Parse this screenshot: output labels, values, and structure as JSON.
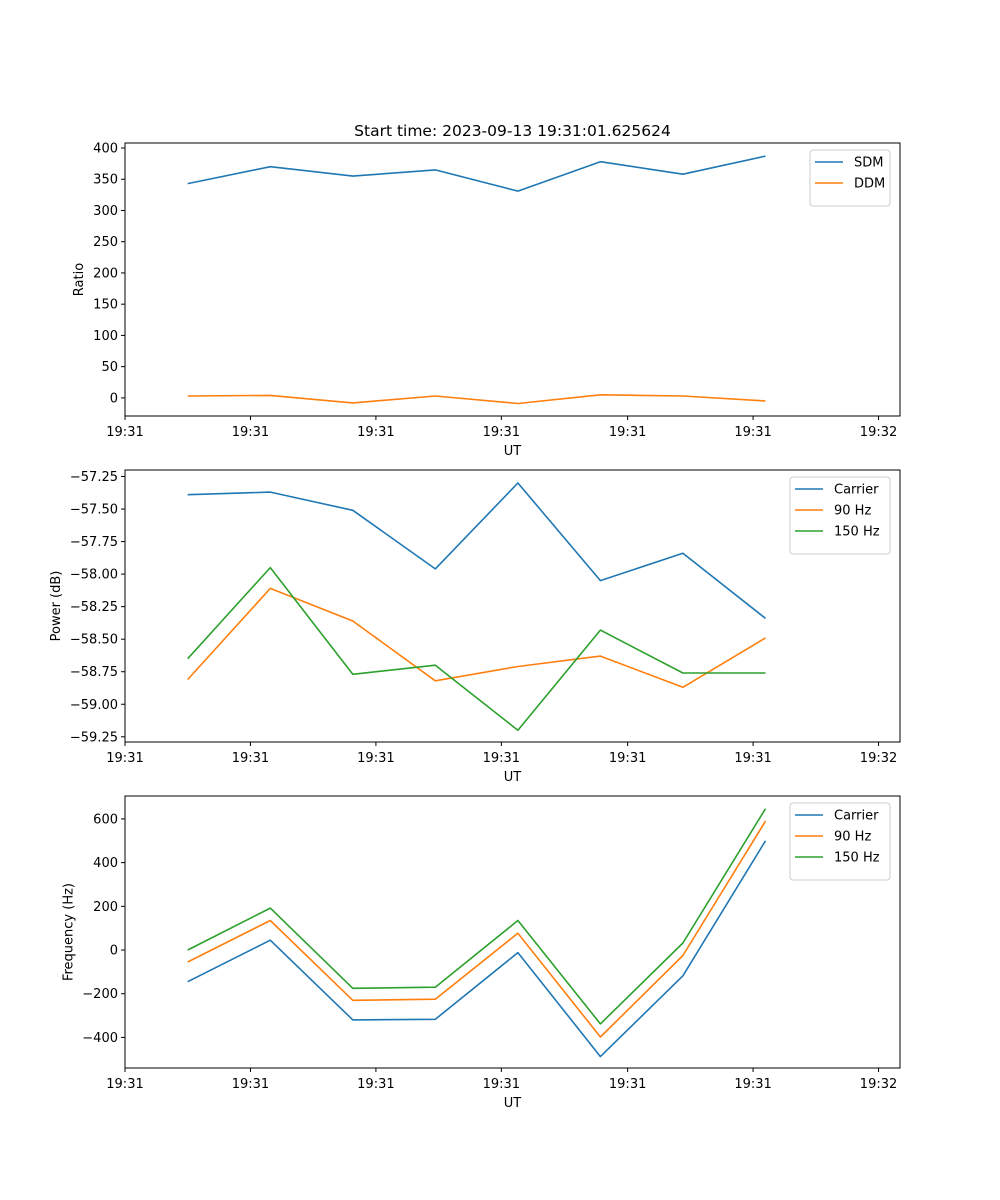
{
  "title": "Start time: 2023-09-13 19:31:01.625624",
  "colors": {
    "blue": "#1f77b4",
    "orange": "#ff7f0e",
    "green": "#2ca02c"
  },
  "chart_data": [
    {
      "type": "line",
      "title": "Start time: 2023-09-13 19:31:01.625624",
      "xlabel": "UT",
      "ylabel": "Ratio",
      "x": [
        1,
        2,
        3,
        4,
        5,
        6,
        7,
        8
      ],
      "xlim": [
        0.24,
        9.63
      ],
      "xticks": [
        0.24,
        1.76,
        3.28,
        4.8,
        6.33,
        7.85,
        9.37
      ],
      "xtick_labels": [
        "19:31",
        "19:31",
        "19:31",
        "19:31",
        "19:31",
        "19:31",
        "19:32"
      ],
      "ylim": [
        -29,
        408
      ],
      "yticks": [
        0,
        50,
        100,
        150,
        200,
        250,
        300,
        350,
        400
      ],
      "ytick_labels": [
        "0",
        "50",
        "100",
        "150",
        "200",
        "250",
        "300",
        "350",
        "400"
      ],
      "legend": "top-right",
      "series": [
        {
          "name": "SDM",
          "color": "#1f77b4",
          "values": [
            343,
            370,
            355,
            365,
            331,
            378,
            358,
            387
          ]
        },
        {
          "name": "DDM",
          "color": "#ff7f0e",
          "values": [
            3,
            4,
            -8,
            3,
            -9,
            5,
            3,
            -5
          ]
        }
      ]
    },
    {
      "type": "line",
      "xlabel": "UT",
      "ylabel": "Power (dB)",
      "x": [
        1,
        2,
        3,
        4,
        5,
        6,
        7,
        8
      ],
      "xlim": [
        0.24,
        9.63
      ],
      "xticks": [
        0.24,
        1.76,
        3.28,
        4.8,
        6.33,
        7.85,
        9.37
      ],
      "xtick_labels": [
        "19:31",
        "19:31",
        "19:31",
        "19:31",
        "19:31",
        "19:31",
        "19:32"
      ],
      "ylim": [
        -59.29,
        -57.2
      ],
      "yticks": [
        -57.25,
        -57.5,
        -57.75,
        -58.0,
        -58.25,
        -58.5,
        -58.75,
        -59.0,
        -59.25
      ],
      "ytick_labels": [
        "−57.25",
        "−57.50",
        "−57.75",
        "−58.00",
        "−58.25",
        "−58.50",
        "−58.75",
        "−59.00",
        "−59.25"
      ],
      "legend": "top-right",
      "series": [
        {
          "name": "Carrier",
          "color": "#1f77b4",
          "values": [
            -57.39,
            -57.37,
            -57.51,
            -57.96,
            -57.3,
            -58.05,
            -57.84,
            -58.34
          ]
        },
        {
          "name": "90 Hz",
          "color": "#ff7f0e",
          "values": [
            -58.81,
            -58.11,
            -58.36,
            -58.82,
            -58.71,
            -58.63,
            -58.87,
            -58.49
          ]
        },
        {
          "name": "150 Hz",
          "color": "#2ca02c",
          "values": [
            -58.65,
            -57.95,
            -58.77,
            -58.7,
            -59.2,
            -58.43,
            -58.76,
            -58.76
          ]
        }
      ]
    },
    {
      "type": "line",
      "xlabel": "UT",
      "ylabel": "Frequency (Hz)",
      "x": [
        1,
        2,
        3,
        4,
        5,
        6,
        7,
        8
      ],
      "xlim": [
        0.24,
        9.63
      ],
      "xticks": [
        0.24,
        1.76,
        3.28,
        4.8,
        6.33,
        7.85,
        9.37
      ],
      "xtick_labels": [
        "19:31",
        "19:31",
        "19:31",
        "19:31",
        "19:31",
        "19:31",
        "19:32"
      ],
      "ylim": [
        -540,
        705
      ],
      "yticks": [
        600,
        400,
        200,
        0,
        -200,
        -400
      ],
      "ytick_labels": [
        "600",
        "400",
        "200",
        "0",
        "−200",
        "−400"
      ],
      "legend": "top-right",
      "series": [
        {
          "name": "Carrier",
          "color": "#1f77b4",
          "values": [
            -145,
            45,
            -320,
            -317,
            -12,
            -488,
            -118,
            500
          ]
        },
        {
          "name": "90 Hz",
          "color": "#ff7f0e",
          "values": [
            -55,
            135,
            -230,
            -225,
            77,
            -398,
            -25,
            590
          ]
        },
        {
          "name": "150 Hz",
          "color": "#2ca02c",
          "values": [
            0,
            192,
            -175,
            -170,
            135,
            -338,
            32,
            647
          ]
        }
      ]
    }
  ]
}
